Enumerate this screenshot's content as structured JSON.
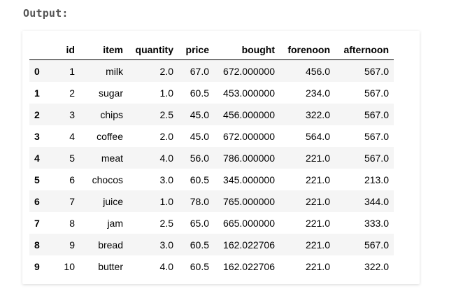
{
  "heading": "Output:",
  "table": {
    "columns": [
      "",
      "id",
      "item",
      "quantity",
      "price",
      "bought",
      "forenoon",
      "afternoon"
    ],
    "rows": [
      [
        "0",
        "1",
        "milk",
        "2.0",
        "67.0",
        "672.000000",
        "456.0",
        "567.0"
      ],
      [
        "1",
        "2",
        "sugar",
        "1.0",
        "60.5",
        "453.000000",
        "234.0",
        "567.0"
      ],
      [
        "2",
        "3",
        "chips",
        "2.5",
        "45.0",
        "456.000000",
        "322.0",
        "567.0"
      ],
      [
        "3",
        "4",
        "coffee",
        "2.0",
        "45.0",
        "672.000000",
        "564.0",
        "567.0"
      ],
      [
        "4",
        "5",
        "meat",
        "4.0",
        "56.0",
        "786.000000",
        "221.0",
        "567.0"
      ],
      [
        "5",
        "6",
        "chocos",
        "3.0",
        "60.5",
        "345.000000",
        "221.0",
        "213.0"
      ],
      [
        "6",
        "7",
        "juice",
        "1.0",
        "78.0",
        "765.000000",
        "221.0",
        "344.0"
      ],
      [
        "7",
        "8",
        "jam",
        "2.5",
        "65.0",
        "665.000000",
        "221.0",
        "333.0"
      ],
      [
        "8",
        "9",
        "bread",
        "3.0",
        "60.5",
        "162.022706",
        "221.0",
        "567.0"
      ],
      [
        "9",
        "10",
        "butter",
        "4.0",
        "60.5",
        "162.022706",
        "221.0",
        "322.0"
      ]
    ]
  }
}
